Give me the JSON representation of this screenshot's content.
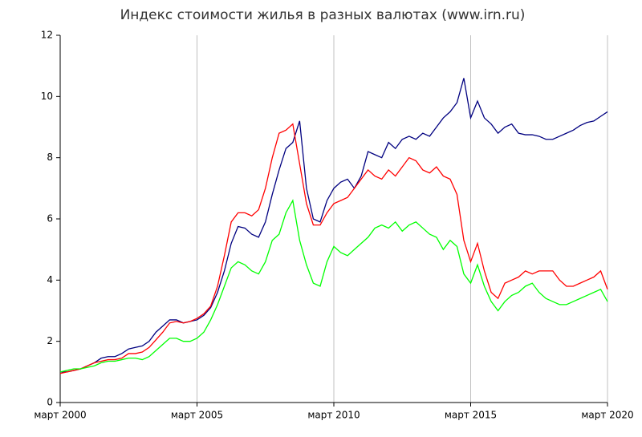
{
  "chart_data": {
    "type": "line",
    "title": "Индекс стоимости жилья в разных валютах (www.irn.ru)",
    "x": [
      "2000-03",
      "2000-06",
      "2000-09",
      "2000-12",
      "2001-03",
      "2001-06",
      "2001-09",
      "2001-12",
      "2002-03",
      "2002-06",
      "2002-09",
      "2002-12",
      "2003-03",
      "2003-06",
      "2003-09",
      "2003-12",
      "2004-03",
      "2004-06",
      "2004-09",
      "2004-12",
      "2005-03",
      "2005-06",
      "2005-09",
      "2005-12",
      "2006-03",
      "2006-06",
      "2006-09",
      "2006-12",
      "2007-03",
      "2007-06",
      "2007-09",
      "2007-12",
      "2008-03",
      "2008-06",
      "2008-09",
      "2008-12",
      "2009-03",
      "2009-06",
      "2009-09",
      "2009-12",
      "2010-03",
      "2010-06",
      "2010-09",
      "2010-12",
      "2011-03",
      "2011-06",
      "2011-09",
      "2011-12",
      "2012-03",
      "2012-06",
      "2012-09",
      "2012-12",
      "2013-03",
      "2013-06",
      "2013-09",
      "2013-12",
      "2014-03",
      "2014-06",
      "2014-09",
      "2014-12",
      "2015-03",
      "2015-06",
      "2015-09",
      "2015-12",
      "2016-03",
      "2016-06",
      "2016-09",
      "2016-12",
      "2017-03",
      "2017-06",
      "2017-09",
      "2017-12",
      "2018-03",
      "2018-06",
      "2018-09",
      "2018-12",
      "2019-03",
      "2019-06",
      "2019-09",
      "2019-12",
      "2020-03"
    ],
    "series": [
      {
        "color": "#000080",
        "values": [
          1.0,
          1.0,
          1.05,
          1.1,
          1.2,
          1.3,
          1.45,
          1.5,
          1.5,
          1.6,
          1.75,
          1.8,
          1.85,
          2.0,
          2.3,
          2.5,
          2.7,
          2.7,
          2.6,
          2.65,
          2.7,
          2.85,
          3.1,
          3.6,
          4.3,
          5.2,
          5.75,
          5.7,
          5.5,
          5.4,
          5.9,
          6.8,
          7.6,
          8.3,
          8.5,
          9.2,
          7.0,
          6.0,
          5.9,
          6.6,
          7.0,
          7.2,
          7.3,
          7.0,
          7.4,
          8.2,
          8.1,
          8.0,
          8.5,
          8.3,
          8.6,
          8.7,
          8.6,
          8.8,
          8.7,
          9.0,
          9.3,
          9.5,
          9.8,
          10.6,
          9.3,
          9.85,
          9.3,
          9.1,
          8.8,
          9.0,
          9.1,
          8.8,
          8.75,
          8.75,
          8.7,
          8.6,
          8.6,
          8.7,
          8.8,
          8.9,
          9.05,
          9.15,
          9.2,
          9.35,
          9.5
        ]
      },
      {
        "color": "#ff0000",
        "values": [
          0.95,
          1.0,
          1.05,
          1.1,
          1.2,
          1.3,
          1.35,
          1.4,
          1.4,
          1.45,
          1.6,
          1.6,
          1.65,
          1.8,
          2.05,
          2.3,
          2.6,
          2.65,
          2.6,
          2.65,
          2.75,
          2.9,
          3.15,
          3.8,
          4.8,
          5.9,
          6.2,
          6.2,
          6.1,
          6.3,
          7.0,
          8.0,
          8.8,
          8.9,
          9.1,
          7.8,
          6.5,
          5.8,
          5.8,
          6.2,
          6.5,
          6.6,
          6.7,
          7.0,
          7.3,
          7.6,
          7.4,
          7.3,
          7.6,
          7.4,
          7.7,
          8.0,
          7.9,
          7.6,
          7.5,
          7.7,
          7.4,
          7.3,
          6.8,
          5.3,
          4.6,
          5.2,
          4.3,
          3.6,
          3.4,
          3.9,
          4.0,
          4.1,
          4.3,
          4.2,
          4.3,
          4.3,
          4.3,
          4.0,
          3.8,
          3.8,
          3.9,
          4.0,
          4.1,
          4.3,
          3.7
        ]
      },
      {
        "color": "#00ff00",
        "values": [
          1.0,
          1.05,
          1.1,
          1.1,
          1.15,
          1.2,
          1.3,
          1.35,
          1.35,
          1.4,
          1.45,
          1.45,
          1.4,
          1.5,
          1.7,
          1.9,
          2.1,
          2.1,
          2.0,
          2.0,
          2.1,
          2.3,
          2.7,
          3.2,
          3.8,
          4.4,
          4.6,
          4.5,
          4.3,
          4.2,
          4.6,
          5.3,
          5.5,
          6.2,
          6.6,
          5.3,
          4.5,
          3.9,
          3.8,
          4.6,
          5.1,
          4.9,
          4.8,
          5.0,
          5.2,
          5.4,
          5.7,
          5.8,
          5.7,
          5.9,
          5.6,
          5.8,
          5.9,
          5.7,
          5.5,
          5.4,
          5.0,
          5.3,
          5.1,
          4.2,
          3.9,
          4.5,
          3.8,
          3.3,
          3.0,
          3.3,
          3.5,
          3.6,
          3.8,
          3.9,
          3.6,
          3.4,
          3.3,
          3.2,
          3.2,
          3.3,
          3.4,
          3.5,
          3.6,
          3.7,
          3.3
        ]
      }
    ],
    "xlim": [
      "2000-03",
      "2020-03"
    ],
    "xticks": [
      {
        "value": "2000-03",
        "label": "март 2000"
      },
      {
        "value": "2005-03",
        "label": "март 2005"
      },
      {
        "value": "2010-03",
        "label": "март 2010"
      },
      {
        "value": "2015-03",
        "label": "март 2015"
      },
      {
        "value": "2020-03",
        "label": "март 2020"
      }
    ],
    "ylim": [
      0,
      12
    ],
    "yticks": [
      0,
      2,
      4,
      6,
      8,
      10,
      12
    ],
    "grid": true
  }
}
